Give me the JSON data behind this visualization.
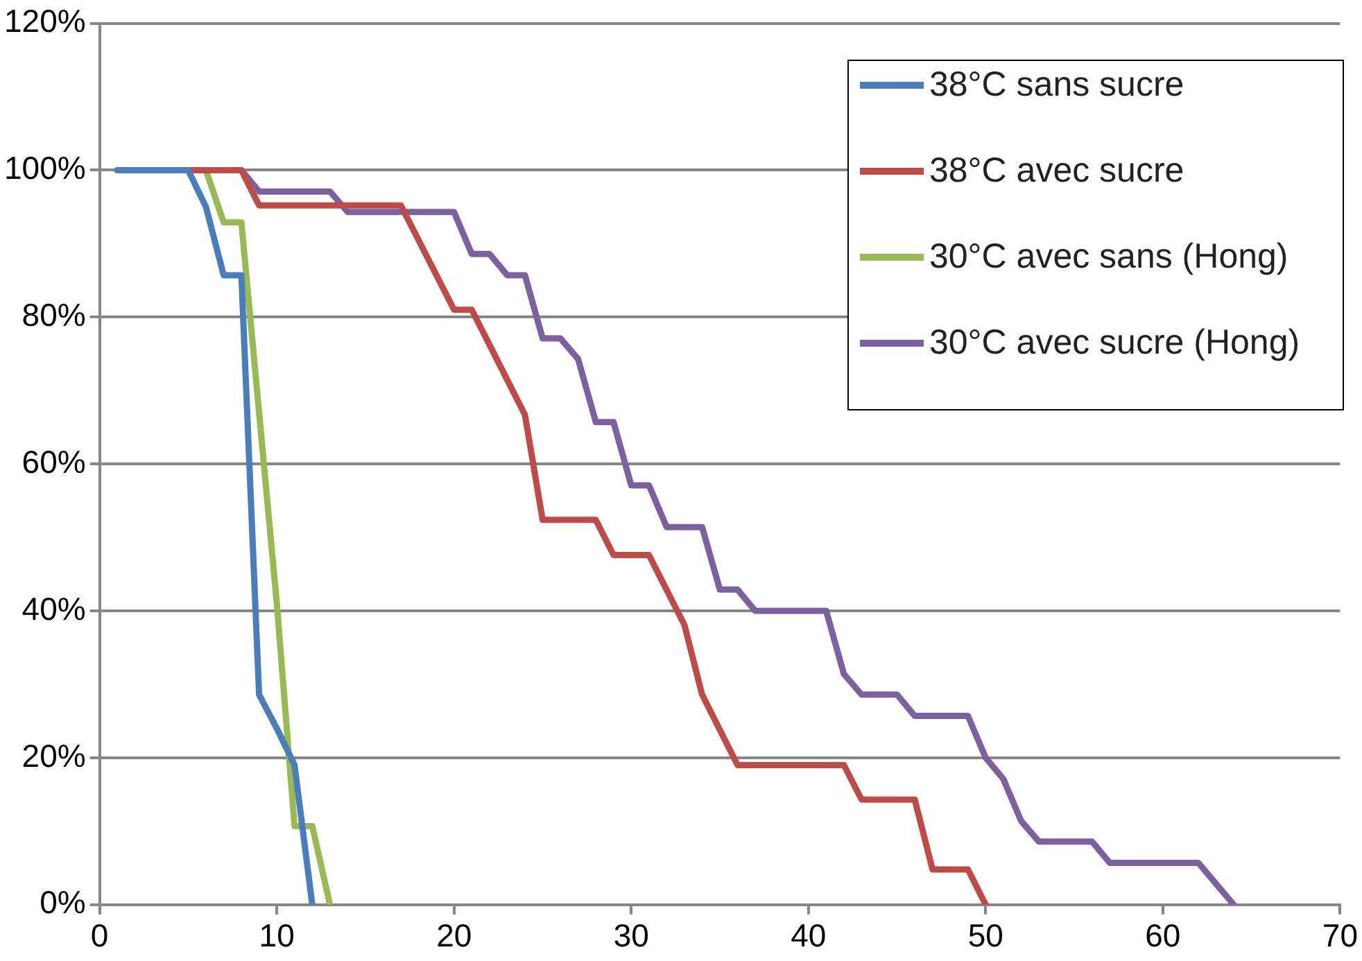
{
  "chart_data": {
    "type": "line",
    "xlim": [
      0,
      70
    ],
    "xticks": [
      0,
      10,
      20,
      30,
      40,
      50,
      60,
      70
    ],
    "ylim": [
      0,
      120
    ],
    "yticks": [
      {
        "value": 0,
        "label": "0%"
      },
      {
        "value": 20,
        "label": "20%"
      },
      {
        "value": 40,
        "label": "40%"
      },
      {
        "value": 60,
        "label": "60%"
      },
      {
        "value": 80,
        "label": "80%"
      },
      {
        "value": 100,
        "label": "100%"
      },
      {
        "value": 120,
        "label": "120%"
      }
    ],
    "grid": "y",
    "legend": "top right",
    "marker": "none",
    "line_style": "solid",
    "series": [
      {
        "name": "38°C sans sucre",
        "color": "#4a7ebb",
        "x": [
          1,
          5,
          6,
          7,
          8,
          9,
          10,
          11,
          12
        ],
        "values": [
          100,
          100,
          95,
          85.7,
          85.7,
          28.6,
          24,
          19,
          0
        ]
      },
      {
        "name": "38°C avec sucre",
        "color": "#be4b48",
        "x": [
          1,
          8,
          9,
          17,
          20,
          21,
          24,
          25,
          28,
          29,
          31,
          33,
          34,
          36,
          42,
          43,
          46,
          47,
          49,
          50
        ],
        "values": [
          100,
          100,
          95.2,
          95.2,
          81,
          81,
          66.7,
          52.4,
          52.4,
          47.6,
          47.6,
          38.1,
          28.6,
          19,
          19,
          14.3,
          14.3,
          4.8,
          4.8,
          0
        ]
      },
      {
        "name": "30°C avec sans (Hong)",
        "color": "#98b954",
        "x": [
          1,
          6,
          7,
          8,
          9,
          10,
          11,
          12,
          13
        ],
        "values": [
          100,
          100,
          92.9,
          92.9,
          67,
          41,
          10.7,
          10.7,
          0
        ]
      },
      {
        "name": "30°C avec sucre (Hong)",
        "color": "#7d60a0",
        "x": [
          1,
          8,
          9,
          13,
          14,
          20,
          21,
          22,
          23,
          24,
          25,
          26,
          27,
          28,
          29,
          30,
          31,
          32,
          34,
          35,
          36,
          37,
          41,
          42,
          43,
          45,
          46,
          49,
          50,
          51,
          52,
          53,
          56,
          57,
          62,
          64
        ],
        "values": [
          100,
          100,
          97.1,
          97.1,
          94.3,
          94.3,
          88.6,
          88.6,
          85.7,
          85.7,
          77.1,
          77.1,
          74.3,
          65.7,
          65.7,
          57.1,
          57.1,
          51.4,
          51.4,
          42.9,
          42.9,
          40,
          40,
          31.4,
          28.6,
          28.6,
          25.7,
          25.7,
          20,
          17.1,
          11.4,
          8.6,
          8.6,
          5.7,
          5.7,
          0
        ]
      }
    ]
  }
}
